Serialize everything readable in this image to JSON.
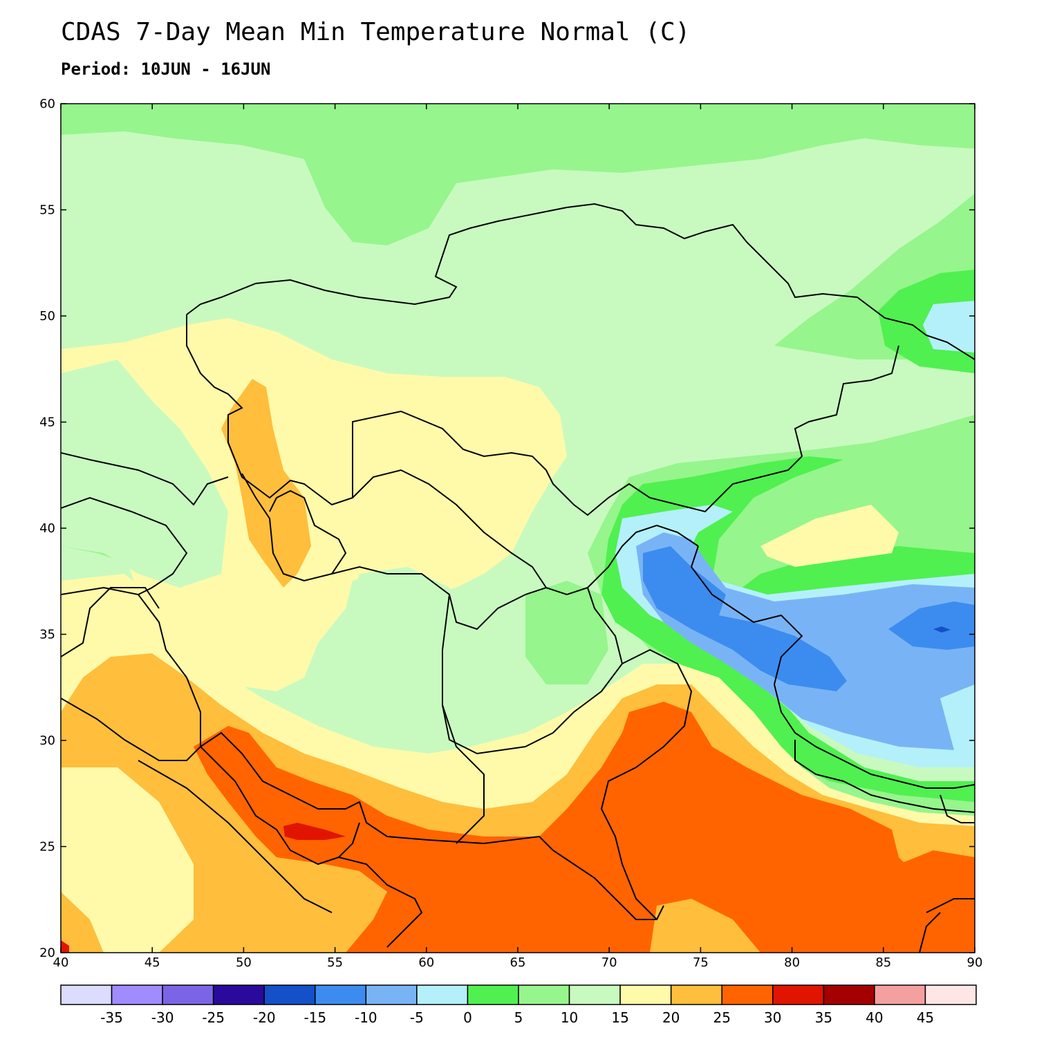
{
  "header": {
    "title": "CDAS 7-Day Mean Min Temperature Normal (C)",
    "subtitle": "Period: 10JUN - 16JUN"
  },
  "map": {
    "projection": "lat-lon",
    "lon_range": [
      40,
      90
    ],
    "lat_range": [
      20,
      60
    ],
    "lon_ticks": [
      "40",
      "45",
      "50",
      "55",
      "60",
      "65",
      "70",
      "75",
      "80",
      "85",
      "90"
    ],
    "lat_ticks": [
      "20",
      "25",
      "30",
      "35",
      "40",
      "45",
      "50",
      "55",
      "60"
    ]
  },
  "colorbar": {
    "colors": [
      "#dcdcff",
      "#a08cff",
      "#7c64e6",
      "#2a0a9c",
      "#1450c8",
      "#3c8cf0",
      "#78b4f5",
      "#b4f0fa",
      "#50f050",
      "#96f58c",
      "#c8fac0",
      "#fffaaa",
      "#ffbe3c",
      "#ff6400",
      "#e11400",
      "#a50000",
      "#f5a0a0",
      "#ffe6e6"
    ],
    "labels": [
      "-35",
      "-30",
      "-25",
      "-20",
      "-15",
      "-10",
      "-5",
      "0",
      "5",
      "10",
      "15",
      "20",
      "25",
      "30",
      "35",
      "40",
      "45"
    ]
  }
}
